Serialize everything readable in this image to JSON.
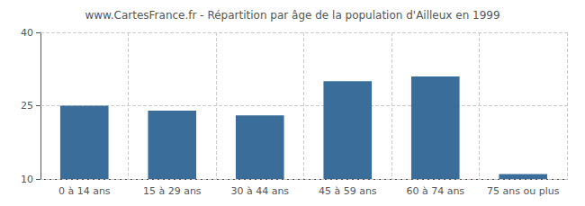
{
  "chart_data": {
    "type": "bar",
    "title": "www.CartesFrance.fr - Répartition par âge de la population d'Ailleux en 1999",
    "categories": [
      "0 à 14 ans",
      "15 à 29 ans",
      "30 à 44 ans",
      "45 à 59 ans",
      "60 à 74 ans",
      "75 ans ou plus"
    ],
    "values": [
      25,
      24,
      23,
      30,
      31,
      11
    ],
    "color": "#3a6d9a",
    "ylim": [
      10,
      40
    ],
    "yticks": [
      10,
      25,
      40
    ],
    "grid": true
  }
}
